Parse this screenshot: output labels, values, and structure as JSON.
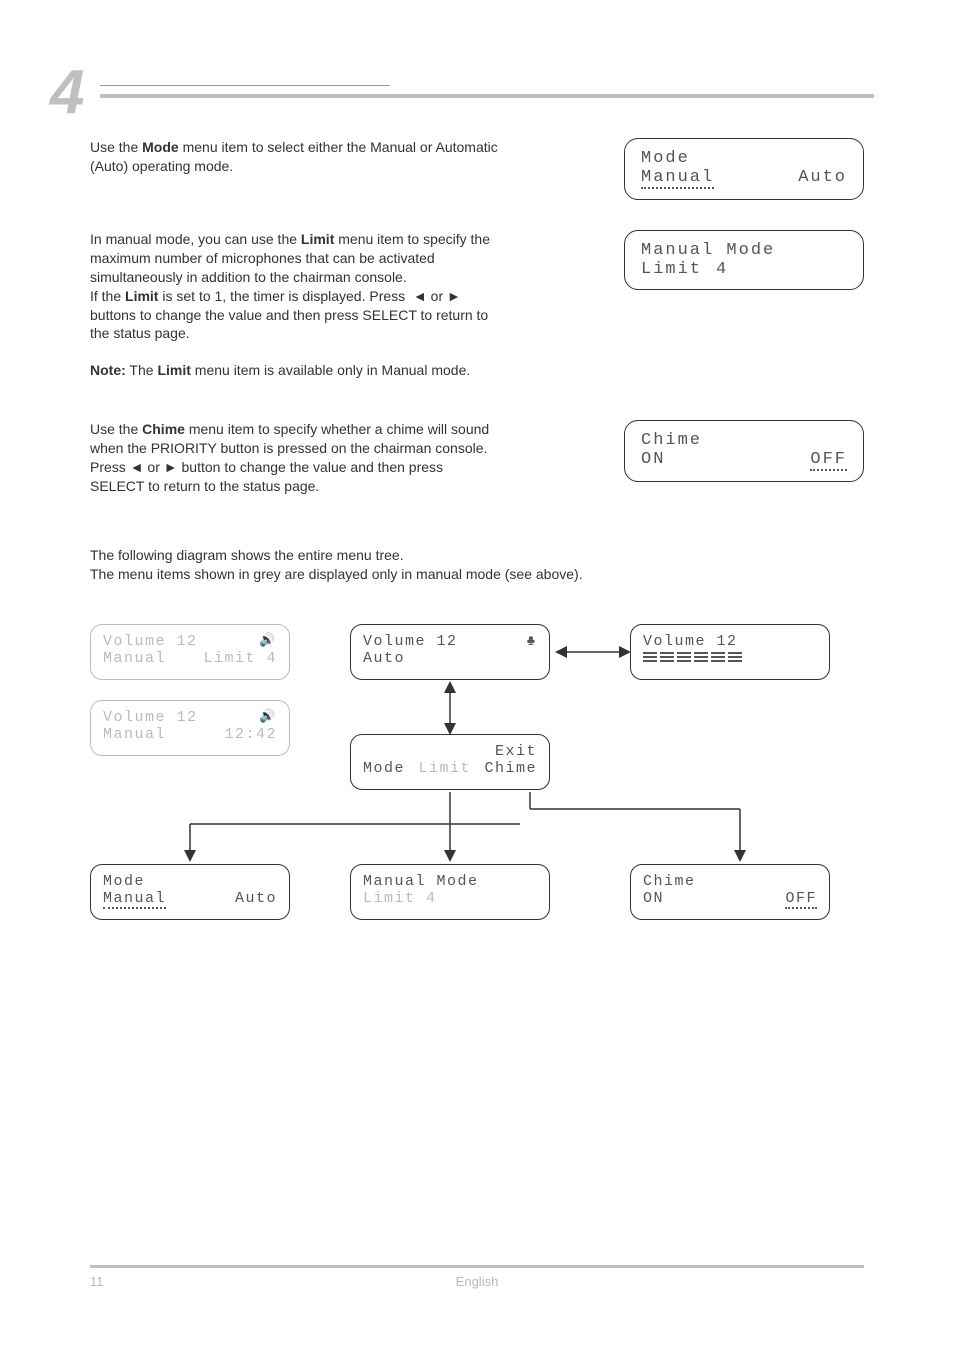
{
  "chapter": {
    "number": "4"
  },
  "sections": {
    "mode": {
      "para_html": "Use the <b>Mode</b> menu item to select either the Manual or Automatic (Auto) operating mode.",
      "lcd": {
        "l1": "Mode",
        "opt1": "Manual",
        "opt2": "Auto"
      }
    },
    "limit": {
      "para1_html": "In manual mode, you can use the <b>Limit</b> menu item to specify the maximum number of microphones that can be activated simultaneously in addition to the chairman console.",
      "para2_html": "If the <b>Limit</b> is set to 1, the timer is displayed. Press &nbsp;◄ or ► buttons to change the value and then press SELECT to return to the status page.",
      "note_html": "<b>Note:</b> The <b>Limit</b> menu item is available only in Manual mode.",
      "lcd": {
        "l1": "Manual Mode",
        "l2a": "Limit",
        "l2b": "4"
      }
    },
    "chime": {
      "para_html": "Use the <b>Chime</b> menu item to specify whether a chime will sound when the PRIORITY button is pressed on the chairman console. Press ◄ or ► button to change the value and then press SELECT to return to the status page.",
      "lcd": {
        "l1": "Chime",
        "opt1": "ON",
        "opt2": "OFF"
      }
    }
  },
  "menutree": {
    "intro1": "The following diagram shows the entire menu tree.",
    "intro2": "The menu items shown in grey are displayed only in manual mode (see above).",
    "boxes": {
      "status_manual_limit": {
        "l1a": "Volume 12",
        "l2a": "Manual",
        "l2b": "Limit 4"
      },
      "status_auto": {
        "l1a": "Volume 12",
        "l2a": "Auto",
        "icon": "♣"
      },
      "status_bars": {
        "l1a": "Volume 12"
      },
      "status_manual_time": {
        "l1a": "Volume 12",
        "l2a": "Manual",
        "l2b": "12:42"
      },
      "menu_root": {
        "r1": "Exit",
        "r2a": "Mode",
        "r2b": "Limit",
        "r2c": "Chime"
      },
      "mode": {
        "l1": "Mode",
        "opt1": "Manual",
        "opt2": "Auto"
      },
      "manual_mode": {
        "l1": "Manual Mode",
        "l2": "Limit 4"
      },
      "chime": {
        "l1": "Chime",
        "opt1": "ON",
        "opt2": "OFF"
      }
    }
  },
  "footer": {
    "page": "11",
    "lang": "English"
  }
}
